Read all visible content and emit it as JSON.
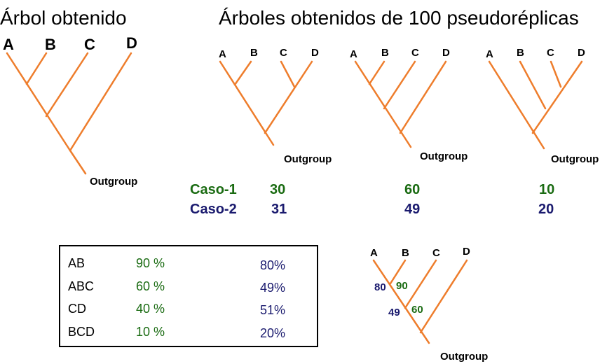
{
  "titles": {
    "obtained_tree": "Árbol obtenido",
    "replicate_trees": "Árboles obtenidos de 100 pseudoréplicas"
  },
  "taxa": [
    "A",
    "B",
    "C",
    "D"
  ],
  "outgroup_label": "Outgroup",
  "replicate_cases": [
    {
      "label": "Caso-1",
      "values": [
        "30",
        "60",
        "10"
      ]
    },
    {
      "label": "Caso-2",
      "values": [
        "31",
        "49",
        "20"
      ]
    }
  ],
  "clade_table": {
    "rows": [
      {
        "clade": "AB",
        "caso1": "90 %",
        "caso2": "80%"
      },
      {
        "clade": "ABC",
        "caso1": "60 %",
        "caso2": "49%"
      },
      {
        "clade": "CD",
        "caso1": "40 %",
        "caso2": "51%"
      },
      {
        "clade": "BCD",
        "caso1": "10 %",
        "caso2": "20%"
      }
    ]
  },
  "consensus_support": {
    "ab": {
      "caso2": "80",
      "caso1": "90"
    },
    "abc": {
      "caso2": "49",
      "caso1": "60"
    }
  },
  "colors": {
    "branch": "#ee7d2c",
    "caso1": "#1a6b12",
    "caso2": "#1a1a6e"
  }
}
